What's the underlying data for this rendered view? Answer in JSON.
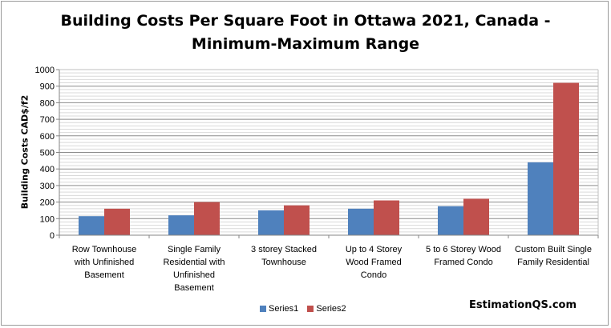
{
  "chart_data": {
    "type": "bar",
    "title_lines": [
      "Building Costs Per Square Foot in Ottawa 2021, Canada -",
      "Minimum-Maximum Range"
    ],
    "xlabel": "",
    "ylabel": "Building Costs  CAD$/f2",
    "ylim": [
      0,
      1000
    ],
    "yticks": [
      0,
      100,
      200,
      300,
      400,
      500,
      600,
      700,
      800,
      900,
      1000
    ],
    "grid": true,
    "legend_position": "bottom",
    "categories": [
      [
        "Row Townhouse",
        "with Unfinished",
        "Basement"
      ],
      [
        "Single Family",
        "Residential with",
        "Unfinished",
        "Basement"
      ],
      [
        "3 storey Stacked",
        "Townhouse"
      ],
      [
        "Up to 4 Storey",
        "Wood Framed",
        "Condo"
      ],
      [
        "5 to 6 Storey Wood",
        "Framed Condo"
      ],
      [
        "Custom Built Single",
        "Family Residential"
      ]
    ],
    "series": [
      {
        "name": "Series1",
        "color": "#4f81bd",
        "values": [
          115,
          120,
          150,
          160,
          175,
          440
        ]
      },
      {
        "name": "Series2",
        "color": "#c0504d",
        "values": [
          160,
          200,
          180,
          210,
          220,
          920
        ]
      }
    ]
  },
  "watermark": "EstimationQS.com"
}
